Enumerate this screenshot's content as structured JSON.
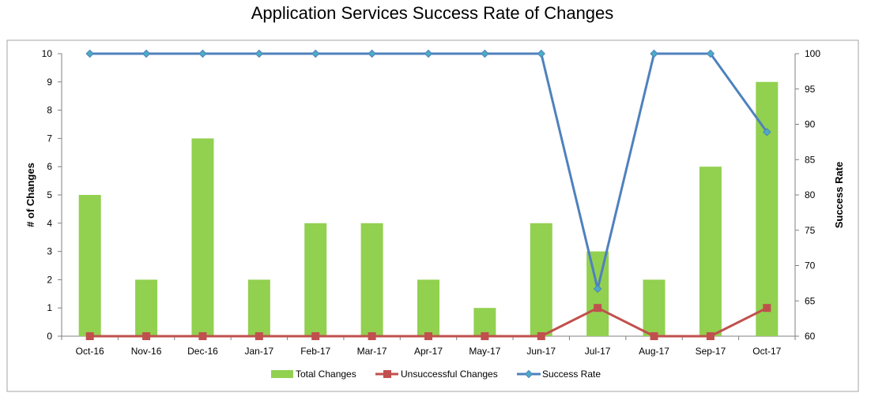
{
  "colors": {
    "total_changes": "#92d050",
    "unsuccessful_changes": "#c0504d",
    "success_rate": "#4f81bd",
    "marker_success": "#4bacc6",
    "frame": "#a6a6a6",
    "axis": "#808080"
  },
  "chart_data": {
    "type": "bar",
    "title": "Application Services Success Rate of Changes",
    "xlabel": "",
    "ylabel": "# of Changes",
    "y2label": "Success Rate",
    "categories": [
      "Oct-16",
      "Nov-16",
      "Dec-16",
      "Jan-17",
      "Feb-17",
      "Mar-17",
      "Apr-17",
      "May-17",
      "Jun-17",
      "Jul-17",
      "Aug-17",
      "Sep-17",
      "Oct-17"
    ],
    "ylim": [
      0,
      10
    ],
    "y2lim": [
      60,
      100
    ],
    "yticks": [
      "0",
      "1",
      "2",
      "3",
      "4",
      "5",
      "6",
      "7",
      "8",
      "9",
      "10"
    ],
    "y2ticks": [
      "60",
      "65",
      "70",
      "75",
      "80",
      "85",
      "90",
      "95",
      "100"
    ],
    "grid": false,
    "legend_position": "bottom",
    "series": [
      {
        "name": "Total Changes",
        "type": "bar",
        "axis": "left",
        "values": [
          5,
          2,
          7,
          2,
          4,
          4,
          2,
          1,
          4,
          3,
          2,
          6,
          9
        ]
      },
      {
        "name": "Unsuccessful Changes",
        "type": "line",
        "axis": "left",
        "marker": "square",
        "values": [
          0,
          0,
          0,
          0,
          0,
          0,
          0,
          0,
          0,
          1,
          0,
          0,
          1
        ]
      },
      {
        "name": "Success Rate",
        "type": "line",
        "axis": "right",
        "marker": "diamond",
        "values": [
          100,
          100,
          100,
          100,
          100,
          100,
          100,
          100,
          100,
          66.7,
          100,
          100,
          88.9
        ]
      }
    ]
  }
}
